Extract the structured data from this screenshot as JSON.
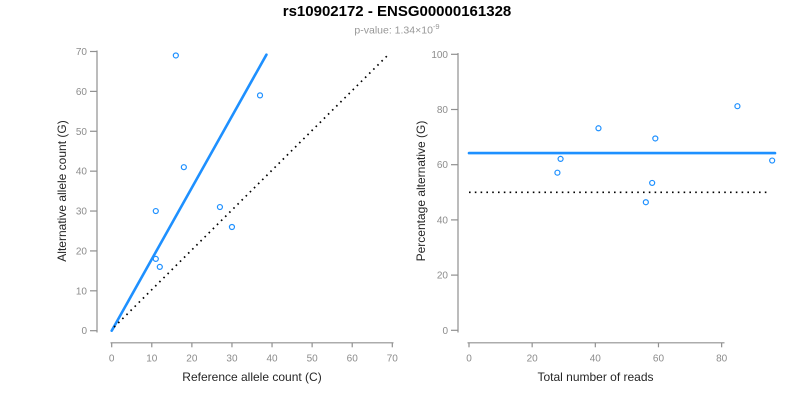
{
  "title": "rs10902172 - ENSG00000161328",
  "subtitle": {
    "prefix": "p-value: ",
    "mantissa": "1.34",
    "times": "×",
    "base": "10",
    "exponent": "-9"
  },
  "colors": {
    "accent_blue": "#1E90FF",
    "dotted_line": "#000000",
    "axis_line": "#909090",
    "tick_label": "#8c8c8c",
    "axis_title": "#262626",
    "title_color": "#000000",
    "background": "#ffffff"
  },
  "chart_data": [
    {
      "type": "scatter",
      "panel": "left",
      "xlabel": "Reference allele count (C)",
      "ylabel": "Alternative allele count (G)",
      "xlim": [
        0,
        70
      ],
      "ylim": [
        0,
        70
      ],
      "xticks": [
        0,
        10,
        20,
        30,
        40,
        50,
        60,
        70
      ],
      "yticks": [
        0,
        10,
        20,
        30,
        40,
        50,
        60,
        70
      ],
      "grid": false,
      "points": [
        [
          16,
          69
        ],
        [
          37,
          59
        ],
        [
          18,
          41
        ],
        [
          11,
          30
        ],
        [
          27,
          31
        ],
        [
          30,
          26
        ],
        [
          11,
          18
        ],
        [
          12,
          16
        ]
      ],
      "lines": [
        {
          "name": "fit-line",
          "style": "solid",
          "color": "#1E90FF",
          "width": 2.6,
          "from": [
            0,
            0
          ],
          "to": [
            38.6,
            69.2
          ]
        },
        {
          "name": "identity-line",
          "style": "dotted",
          "color": "#000000",
          "width": 1.7,
          "from": [
            0.6,
            0.9
          ],
          "to": [
            69.2,
            69.4
          ]
        }
      ]
    },
    {
      "type": "scatter",
      "panel": "right",
      "xlabel": "Total number of reads",
      "ylabel": "Percentage alternative (G)",
      "xlim": [
        0,
        96.9
      ],
      "ylim": [
        0,
        100
      ],
      "xticks": [
        0,
        20,
        40,
        60,
        80
      ],
      "yticks": [
        0,
        20,
        40,
        60,
        80,
        100
      ],
      "grid": false,
      "points": [
        [
          85,
          81.2
        ],
        [
          96,
          61.5
        ],
        [
          59,
          69.5
        ],
        [
          41,
          73.2
        ],
        [
          58,
          53.4
        ],
        [
          56,
          46.4
        ],
        [
          29,
          62.1
        ],
        [
          28,
          57.1
        ]
      ],
      "lines": [
        {
          "name": "mean-line",
          "style": "solid",
          "color": "#1E90FF",
          "width": 2.6,
          "from": [
            0,
            64.2
          ],
          "to": [
            96.9,
            64.2
          ]
        },
        {
          "name": "expected-line",
          "style": "dotted",
          "color": "#000000",
          "width": 1.7,
          "from": [
            0,
            50
          ],
          "to": [
            94.6,
            50
          ]
        }
      ]
    }
  ]
}
